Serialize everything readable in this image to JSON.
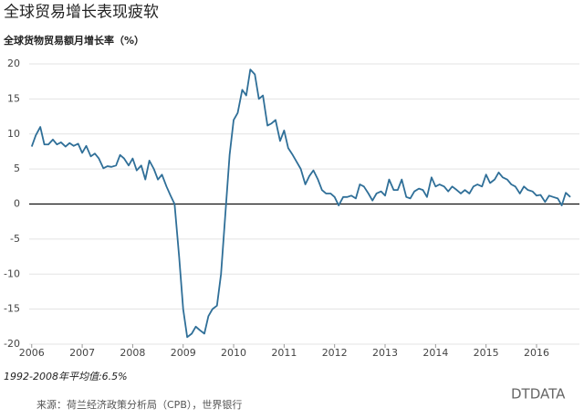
{
  "chart_data": {
    "type": "line",
    "title": "全球贸易增长表现疲软",
    "subtitle": "全球货物贸易额月增长率（%）",
    "note": "1992-2008年平均值:6.5%",
    "source": "来源：荷兰经济政策分析局（CPB），世界银行",
    "watermark": "DTDATA",
    "xlim": [
      2005.95,
      2016.85
    ],
    "xticks": [
      2006,
      2007,
      2008,
      2009,
      2010,
      2011,
      2012,
      2013,
      2014,
      2015,
      2016
    ],
    "ylim": [
      -20,
      20
    ],
    "yticks": [
      -20,
      -15,
      -10,
      -5,
      0,
      5,
      10,
      15,
      20
    ],
    "grid": true,
    "series": [
      {
        "name": "全球货物贸易额月增长率",
        "color": "#2f6f98",
        "x": [
          2006,
          2006.08,
          2006.17,
          2006.25,
          2006.33,
          2006.42,
          2006.5,
          2006.58,
          2006.67,
          2006.75,
          2006.83,
          2006.92,
          2007,
          2007.08,
          2007.17,
          2007.25,
          2007.33,
          2007.42,
          2007.5,
          2007.58,
          2007.67,
          2007.75,
          2007.83,
          2007.92,
          2008,
          2008.08,
          2008.17,
          2008.25,
          2008.33,
          2008.42,
          2008.5,
          2008.58,
          2008.67,
          2008.75,
          2008.83,
          2008.92,
          2009,
          2009.08,
          2009.17,
          2009.25,
          2009.33,
          2009.42,
          2009.5,
          2009.58,
          2009.67,
          2009.75,
          2009.83,
          2009.92,
          2010,
          2010.08,
          2010.17,
          2010.25,
          2010.33,
          2010.42,
          2010.5,
          2010.58,
          2010.67,
          2010.75,
          2010.83,
          2010.92,
          2011,
          2011.08,
          2011.17,
          2011.25,
          2011.33,
          2011.42,
          2011.5,
          2011.58,
          2011.67,
          2011.75,
          2011.83,
          2011.92,
          2012,
          2012.08,
          2012.17,
          2012.25,
          2012.33,
          2012.42,
          2012.5,
          2012.58,
          2012.67,
          2012.75,
          2012.83,
          2012.92,
          2013,
          2013.08,
          2013.17,
          2013.25,
          2013.33,
          2013.42,
          2013.5,
          2013.58,
          2013.67,
          2013.75,
          2013.83,
          2013.92,
          2014,
          2014.08,
          2014.17,
          2014.25,
          2014.33,
          2014.42,
          2014.5,
          2014.58,
          2014.67,
          2014.75,
          2014.83,
          2014.92,
          2015,
          2015.08,
          2015.17,
          2015.25,
          2015.33,
          2015.42,
          2015.5,
          2015.58,
          2015.67,
          2015.75,
          2015.83,
          2015.92,
          2016,
          2016.08,
          2016.17,
          2016.25,
          2016.33,
          2016.42,
          2016.5,
          2016.58,
          2016.67
        ],
        "values": [
          8.2,
          9.8,
          11,
          8.5,
          8.5,
          9.2,
          8.5,
          8.8,
          8.2,
          8.7,
          8.3,
          8.6,
          7.3,
          8.3,
          6.8,
          7.2,
          6.5,
          5.1,
          5.4,
          5.3,
          5.5,
          7,
          6.5,
          5.5,
          6.5,
          4.8,
          5.5,
          3.5,
          6.2,
          5,
          3.5,
          4.2,
          2.5,
          1.2,
          0,
          -7.5,
          -15,
          -19,
          -18.5,
          -17.5,
          -18,
          -18.5,
          -16,
          -15,
          -14.5,
          -10,
          -2,
          7,
          12,
          13,
          16.3,
          15.5,
          19.2,
          18.5,
          15,
          15.5,
          11.2,
          11.5,
          12,
          9,
          10.5,
          8,
          7,
          6,
          5,
          2.8,
          4,
          4.8,
          3.5,
          2,
          1.5,
          1.5,
          1,
          -0.2,
          1,
          1,
          1.2,
          0.8,
          2.8,
          2.5,
          1.5,
          0.5,
          1.5,
          1.8,
          1.2,
          3.5,
          2,
          2,
          3.5,
          1,
          0.8,
          1.8,
          2.2,
          2,
          1,
          3.8,
          2.5,
          2.8,
          2.5,
          1.8,
          2.5,
          2,
          1.5,
          2,
          1.5,
          2.5,
          2.8,
          2.5,
          4.2,
          3,
          3.5,
          4.5,
          3.8,
          3.5,
          2.8,
          2.5,
          1.5,
          2.5,
          2,
          1.8,
          1.2,
          1.3,
          0.3,
          1.2,
          1,
          0.8,
          -0.2,
          1.6,
          1
        ]
      }
    ]
  }
}
